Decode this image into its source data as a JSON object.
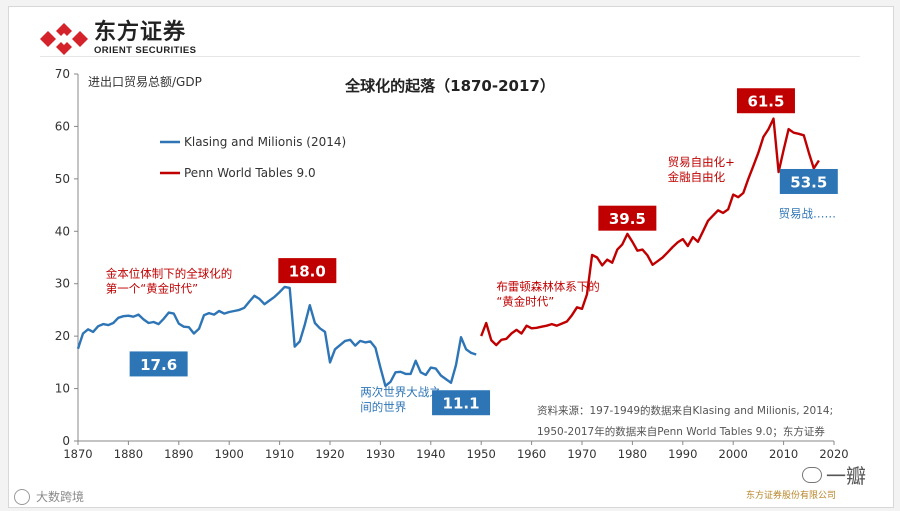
{
  "brand": {
    "name_cn": "东方证券",
    "name_en": "ORIENT SECURITIES",
    "color": "#d4232b"
  },
  "footer": {
    "left_text": "大数跨境",
    "right_text": "东方证券股份有限公司",
    "watermark_text": "一瓣"
  },
  "chart_data": {
    "type": "line",
    "title": "全球化的起落（1870-2017）",
    "ylabel": "进出口贸易总额/GDP",
    "xlabel": "",
    "xlim": [
      1870,
      2020
    ],
    "ylim": [
      0,
      70
    ],
    "xticks": [
      1870,
      1880,
      1890,
      1900,
      1910,
      1920,
      1930,
      1940,
      1950,
      1960,
      1970,
      1980,
      1990,
      2000,
      2010,
      2020
    ],
    "yticks": [
      0,
      10,
      20,
      30,
      40,
      50,
      60,
      70
    ],
    "legend_position": "top-left",
    "series": [
      {
        "name": "Klasing and Milionis (2014)",
        "color": "#2e75b6",
        "x": [
          1870,
          1871,
          1872,
          1873,
          1874,
          1875,
          1876,
          1877,
          1878,
          1879,
          1880,
          1881,
          1882,
          1883,
          1884,
          1885,
          1886,
          1887,
          1888,
          1889,
          1890,
          1891,
          1892,
          1893,
          1894,
          1895,
          1896,
          1897,
          1898,
          1899,
          1900,
          1901,
          1902,
          1903,
          1904,
          1905,
          1906,
          1907,
          1908,
          1909,
          1910,
          1911,
          1912,
          1913,
          1914,
          1915,
          1916,
          1917,
          1918,
          1919,
          1920,
          1921,
          1922,
          1923,
          1924,
          1925,
          1926,
          1927,
          1928,
          1929,
          1930,
          1931,
          1932,
          1933,
          1934,
          1935,
          1936,
          1937,
          1938,
          1939,
          1940,
          1941,
          1942,
          1943,
          1944,
          1945,
          1946,
          1947,
          1948,
          1949
        ],
        "y": [
          17.6,
          20.5,
          21.3,
          20.8,
          21.9,
          22.3,
          22.1,
          22.5,
          23.5,
          23.8,
          23.9,
          23.7,
          24.1,
          23.2,
          22.5,
          22.7,
          22.3,
          23.3,
          24.5,
          24.3,
          22.4,
          21.8,
          21.7,
          20.5,
          21.4,
          24.0,
          24.4,
          24.1,
          24.8,
          24.3,
          24.6,
          24.8,
          25.0,
          25.4,
          26.6,
          27.7,
          27.1,
          26.1,
          26.8,
          27.5,
          28.4,
          29.4,
          29.2,
          18.0,
          19.0,
          22.2,
          25.9,
          22.5,
          21.5,
          20.8,
          15.0,
          17.5,
          18.3,
          19.1,
          19.3,
          18.2,
          19.1,
          18.8,
          19.0,
          17.8,
          14.0,
          10.5,
          11.3,
          13.1,
          13.2,
          12.8,
          12.8,
          15.3,
          13.1,
          12.6,
          14.0,
          13.8,
          12.5,
          11.8,
          11.1,
          14.5,
          19.8,
          17.5,
          16.8,
          16.5
        ]
      },
      {
        "name": "Penn World Tables 9.0",
        "color": "#c00000",
        "x": [
          1950,
          1951,
          1952,
          1953,
          1954,
          1955,
          1956,
          1957,
          1958,
          1959,
          1960,
          1961,
          1962,
          1963,
          1964,
          1965,
          1966,
          1967,
          1968,
          1969,
          1970,
          1971,
          1972,
          1973,
          1974,
          1975,
          1976,
          1977,
          1978,
          1979,
          1980,
          1981,
          1982,
          1983,
          1984,
          1985,
          1986,
          1987,
          1988,
          1989,
          1990,
          1991,
          1992,
          1993,
          1994,
          1995,
          1996,
          1997,
          1998,
          1999,
          2000,
          2001,
          2002,
          2003,
          2004,
          2005,
          2006,
          2007,
          2008,
          2009,
          2010,
          2011,
          2012,
          2013,
          2014,
          2015,
          2016,
          2017
        ],
        "y": [
          20.0,
          22.5,
          19.2,
          18.3,
          19.3,
          19.5,
          20.5,
          21.2,
          20.5,
          22.0,
          21.5,
          21.6,
          21.8,
          22.0,
          22.3,
          22.0,
          22.4,
          22.8,
          24.0,
          25.5,
          25.2,
          28.0,
          35.5,
          35.0,
          33.5,
          34.6,
          34.0,
          36.5,
          37.5,
          39.5,
          38.0,
          36.3,
          36.5,
          35.4,
          33.6,
          34.3,
          35.0,
          36.0,
          37.0,
          37.9,
          38.5,
          37.2,
          38.9,
          38.0,
          40.0,
          42.0,
          43.0,
          44.0,
          43.5,
          44.2,
          47.0,
          46.5,
          47.3,
          50.0,
          52.5,
          55.0,
          58.0,
          59.5,
          61.5,
          51.3,
          55.5,
          59.5,
          58.8,
          58.6,
          58.3,
          55.0,
          52.0,
          53.5
        ]
      }
    ],
    "value_labels": [
      {
        "text": "17.6",
        "style": "blue",
        "x": 1886,
        "y": 14.7
      },
      {
        "text": "18.0",
        "style": "red",
        "x": 1915.5,
        "y": 32.5
      },
      {
        "text": "11.1",
        "style": "blue",
        "x": 1946,
        "y": 7.3
      },
      {
        "text": "39.5",
        "style": "red",
        "x": 1979,
        "y": 42.5
      },
      {
        "text": "61.5",
        "style": "red",
        "x": 2006.5,
        "y": 64.9
      },
      {
        "text": "53.5",
        "style": "blue",
        "x": 2015,
        "y": 49.5
      }
    ],
    "annotations": [
      {
        "lines": [
          "金本位体制下的全球化的",
          "第一个“黄金时代”"
        ],
        "color": "#c00000",
        "x": 1875.5,
        "y": 31.2
      },
      {
        "lines": [
          "两次世界大战之",
          "间的世界"
        ],
        "color": "#2e75b6",
        "x": 1926,
        "y": 8.6
      },
      {
        "lines": [
          "布雷顿森林体系下的",
          "“黄金时代”"
        ],
        "color": "#c00000",
        "x": 1953,
        "y": 28.7
      },
      {
        "lines": [
          "贸易自由化+",
          "金融自由化"
        ],
        "color": "#c00000",
        "x": 1987,
        "y": 52.5
      },
      {
        "lines": [
          "贸易战……"
        ],
        "color": "#2e75b6",
        "x": 2009,
        "y": 42.6
      }
    ],
    "source_note": [
      "资料来源：197-1949的数据来自Klasing and Milionis, 2014;",
      "1950-2017年的数据来自Penn World Tables 9.0；东方证券"
    ],
    "box_colors": {
      "red": "#c00000",
      "blue": "#2e75b6"
    }
  }
}
